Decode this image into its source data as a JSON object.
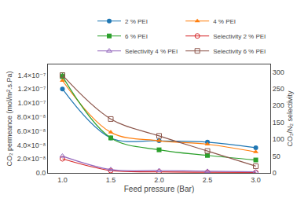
{
  "chart_data": {
    "type": "line",
    "x_label": "Feed pressure (Bar)",
    "y_label": "CO₂ permeance (mol/m².s.Pa)",
    "y2_label": "CO₂/N₂ selectivity",
    "x": [
      1.0,
      1.5,
      2.0,
      2.5,
      3.0
    ],
    "series": [
      {
        "name": "2 % PEI",
        "marker": "circle",
        "values": [
          1.2e-07,
          5e-08,
          4.6e-08,
          4.4e-08,
          3.6e-08
        ]
      },
      {
        "name": "4 % PEI",
        "marker": "triangle-up",
        "values": [
          1.32e-07,
          5.8e-08,
          4.6e-08,
          4.1e-08,
          3e-08
        ]
      },
      {
        "name": "6 % PEI",
        "marker": "square",
        "values": [
          1.38e-07,
          5e-08,
          3.3e-08,
          2.5e-08,
          1.85e-08
        ],
        "error_low": [
          3e-09,
          null,
          null,
          null,
          null
        ],
        "error_high": [
          5e-09,
          null,
          null,
          null,
          null
        ]
      },
      {
        "name": "Selectivity 2 % PEI",
        "marker": "circle-open",
        "axis": "y2",
        "values": [
          42,
          7,
          3,
          2,
          1.5
        ]
      },
      {
        "name": "Selectivity 4 % PEI",
        "marker": "triangle-up-open",
        "axis": "y2",
        "values": [
          50,
          10,
          7,
          5,
          3
        ]
      },
      {
        "name": "Selectivity 6 % PEI",
        "marker": "square-open",
        "axis": "y2",
        "values": [
          290,
          160,
          110,
          65,
          20
        ]
      }
    ],
    "xlim": [
      0.85,
      3.15
    ],
    "xticks": [
      {
        "value": 1.0,
        "label": "1.0"
      },
      1.5,
      {
        "value": 2.0,
        "label": "2.0"
      },
      2.5,
      {
        "value": 3.0,
        "label": "3.0"
      }
    ],
    "ylim": [
      0,
      1.55e-07
    ],
    "yticks": [
      {
        "value": 0.0,
        "label": "0.0"
      },
      {
        "value": 2e-08,
        "label": "2.0×10⁻⁸"
      },
      {
        "value": 4e-08,
        "label": "4.0×10⁻⁸"
      },
      {
        "value": 6e-08,
        "label": "6.0×10⁻⁸"
      },
      {
        "value": 8e-08,
        "label": "8.0×10⁻⁸"
      },
      {
        "value": 1e-07,
        "label": "1.0×10⁻⁷"
      },
      {
        "value": 1.2e-07,
        "label": "1.2×10⁻⁷"
      },
      {
        "value": 1.4e-07,
        "label": "1.4×10⁻⁷"
      }
    ],
    "y2lim": [
      0,
      322
    ],
    "y2ticks": [
      0,
      50,
      100,
      150,
      200,
      250,
      300
    ],
    "grid": false,
    "legend": "upper right"
  }
}
